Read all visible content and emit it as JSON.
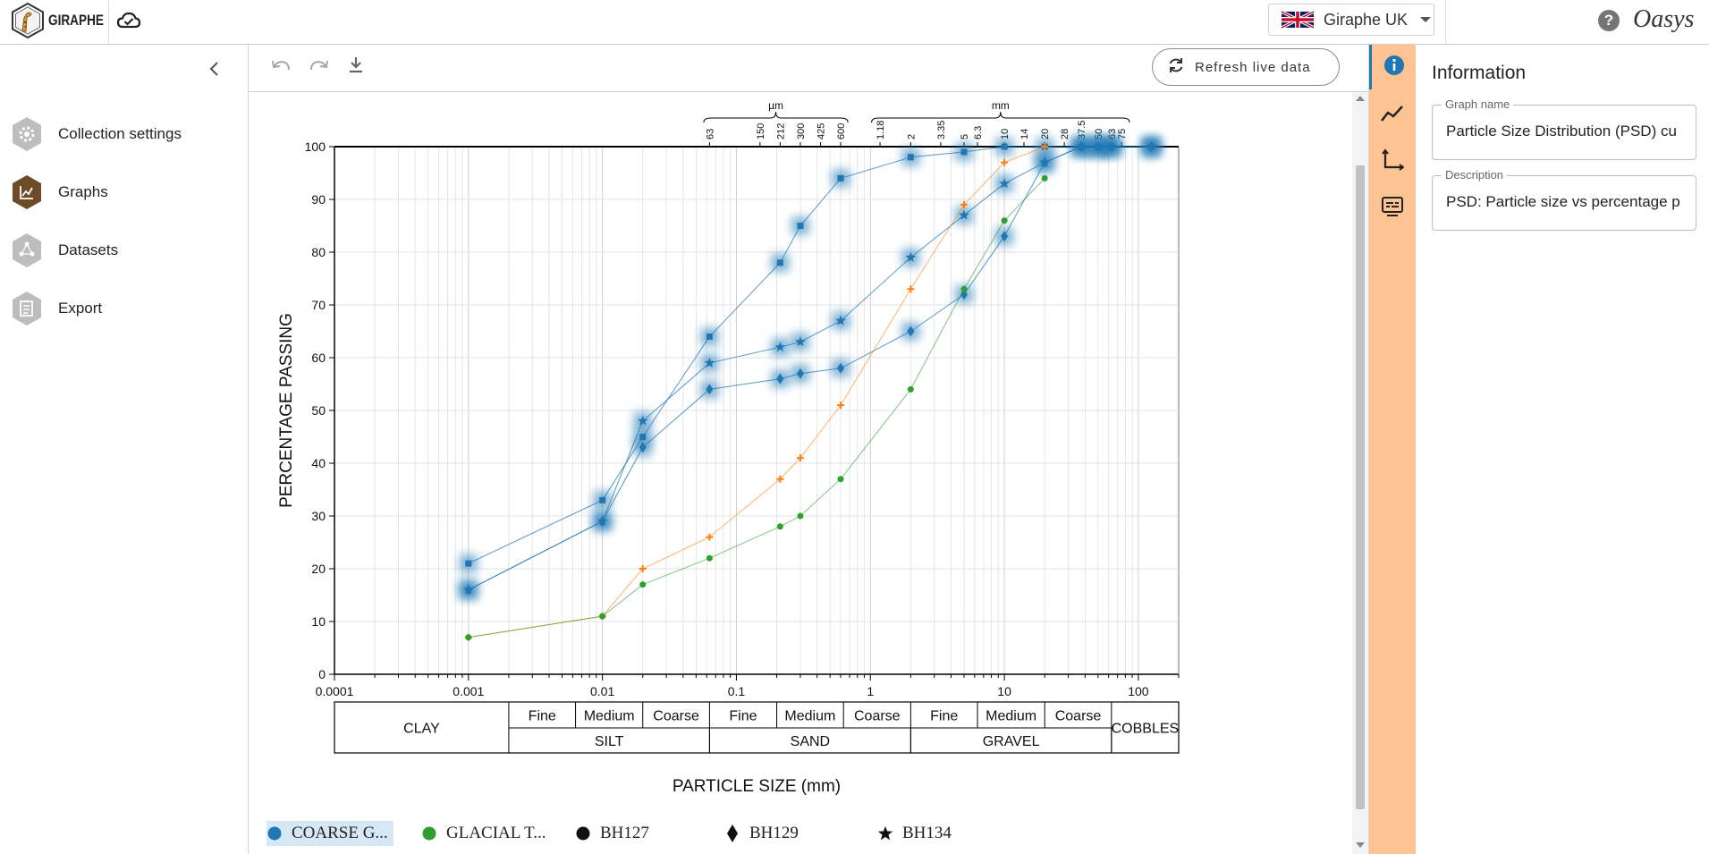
{
  "header": {
    "app_name": "GIRAPHE",
    "region_label": "Giraphe UK",
    "brand": "Oasys",
    "help_glyph": "?"
  },
  "sidebar": {
    "items": [
      {
        "label": "Collection settings",
        "icon": "gear-icon",
        "color": "#b9b9b9"
      },
      {
        "label": "Graphs",
        "icon": "graph-icon",
        "color": "#6d4a28"
      },
      {
        "label": "Datasets",
        "icon": "dataset-icon",
        "color": "#b9b9b9"
      },
      {
        "label": "Export",
        "icon": "export-icon",
        "color": "#b9b9b9"
      }
    ]
  },
  "toolbar": {
    "refresh_label": "Refresh live data"
  },
  "info_panel": {
    "title": "Information",
    "graph_name_label": "Graph name",
    "graph_name_value": "Particle Size Distribution (PSD) cu",
    "description_label": "Description",
    "description_value": "PSD: Particle size vs percentage p"
  },
  "colors": {
    "accent": "#1f77b4",
    "rail": "#fdc393",
    "orange_series": "#ff7f0e",
    "green_series": "#2ca02c",
    "brand_brown": "#6d4a28"
  },
  "chart_data": {
    "type": "scatter",
    "x_scale": "log",
    "xlim": [
      0.0001,
      200
    ],
    "ylim": [
      0,
      100
    ],
    "xlabel": "PARTICLE SIZE (mm)",
    "ylabel": "PERCENTAGE PASSING",
    "x_ticks": [
      0.0001,
      0.001,
      0.01,
      0.1,
      1,
      10,
      100
    ],
    "x_tick_labels": [
      "0.0001",
      "0.001",
      "0.01",
      "0.1",
      "1",
      "10",
      "100"
    ],
    "y_ticks": [
      0,
      10,
      20,
      30,
      40,
      50,
      60,
      70,
      80,
      90,
      100
    ],
    "grid": true,
    "top_axis": {
      "um_label": "µm",
      "mm_label": "mm",
      "um_ticks": [
        {
          "v": 0.063,
          "t": "63"
        },
        {
          "v": 0.15,
          "t": "150"
        },
        {
          "v": 0.212,
          "t": "212"
        },
        {
          "v": 0.3,
          "t": "300"
        },
        {
          "v": 0.425,
          "t": "425"
        },
        {
          "v": 0.6,
          "t": "600"
        }
      ],
      "mm_ticks": [
        {
          "v": 1.18,
          "t": "1.18"
        },
        {
          "v": 2,
          "t": "2"
        },
        {
          "v": 3.35,
          "t": "3.35"
        },
        {
          "v": 5,
          "t": "5"
        },
        {
          "v": 6.3,
          "t": "6.3"
        },
        {
          "v": 10,
          "t": "10"
        },
        {
          "v": 14,
          "t": "14"
        },
        {
          "v": 20,
          "t": "20"
        },
        {
          "v": 28,
          "t": "28"
        },
        {
          "v": 37.5,
          "t": "37.5"
        },
        {
          "v": 50,
          "t": "50"
        },
        {
          "v": 63,
          "t": "63"
        },
        {
          "v": 75,
          "t": "75"
        }
      ]
    },
    "classification": {
      "top_row": [
        {
          "label": "CLAY",
          "from": 0.0001,
          "to": 0.002,
          "span": 2
        },
        {
          "label": "Fine",
          "from": 0.002,
          "to": 0.0063
        },
        {
          "label": "Medium",
          "from": 0.0063,
          "to": 0.02
        },
        {
          "label": "Coarse",
          "from": 0.02,
          "to": 0.063
        },
        {
          "label": "Fine",
          "from": 0.063,
          "to": 0.2
        },
        {
          "label": "Medium",
          "from": 0.2,
          "to": 0.63
        },
        {
          "label": "Coarse",
          "from": 0.63,
          "to": 2
        },
        {
          "label": "Fine",
          "from": 2,
          "to": 6.3
        },
        {
          "label": "Medium",
          "from": 6.3,
          "to": 20
        },
        {
          "label": "Coarse",
          "from": 20,
          "to": 63
        },
        {
          "label": "COBBLES",
          "from": 63,
          "to": 200,
          "span": 2
        }
      ],
      "bottom_row": [
        {
          "label": "SILT",
          "from": 0.002,
          "to": 0.063
        },
        {
          "label": "SAND",
          "from": 0.063,
          "to": 2
        },
        {
          "label": "GRAVEL",
          "from": 2,
          "to": 63
        }
      ]
    },
    "series": [
      {
        "marker": "square",
        "color": "#1f77b4",
        "highlight": true,
        "x": [
          0.001,
          0.01,
          0.02,
          0.063,
          0.212,
          0.3,
          0.6,
          2,
          5,
          10,
          20,
          37.5,
          50,
          63,
          125
        ],
        "y": [
          21,
          33,
          45,
          64,
          78,
          85,
          94,
          98,
          99,
          100,
          100,
          100,
          100,
          100,
          100
        ]
      },
      {
        "marker": "star",
        "color": "#1f77b4",
        "highlight": true,
        "x": [
          0.001,
          0.01,
          0.02,
          0.063,
          0.212,
          0.3,
          0.6,
          2,
          5,
          10,
          20,
          37.5,
          50,
          63,
          125
        ],
        "y": [
          16,
          29,
          48,
          59,
          62,
          63,
          67,
          79,
          87,
          93,
          97,
          100,
          100,
          100,
          100
        ]
      },
      {
        "marker": "diamond",
        "color": "#1f77b4",
        "highlight": true,
        "x": [
          0.001,
          0.01,
          0.02,
          0.063,
          0.212,
          0.3,
          0.6,
          2,
          5,
          10,
          20,
          37.5,
          50,
          63,
          125
        ],
        "y": [
          16,
          29,
          43,
          54,
          56,
          57,
          58,
          65,
          72,
          83,
          97,
          100,
          100,
          100,
          100
        ]
      },
      {
        "marker": "plus",
        "color": "#ff7f0e",
        "highlight": false,
        "x": [
          0.001,
          0.01,
          0.02,
          0.063,
          0.212,
          0.3,
          0.6,
          2,
          5,
          10,
          20
        ],
        "y": [
          7,
          11,
          20,
          26,
          37,
          41,
          51,
          73,
          89,
          97,
          100
        ]
      },
      {
        "marker": "circle",
        "color": "#2ca02c",
        "highlight": false,
        "x": [
          0.001,
          0.01,
          0.02,
          0.063,
          0.212,
          0.3,
          0.6,
          2,
          5,
          10,
          20
        ],
        "y": [
          7,
          11,
          17,
          22,
          28,
          30,
          37,
          54,
          73,
          86,
          94
        ]
      }
    ]
  },
  "legend": {
    "items": [
      {
        "label": "COARSE G...",
        "marker": "circle",
        "color": "#1f77b4",
        "selected": true
      },
      {
        "label": "GLACIAL T...",
        "marker": "circle",
        "color": "#2ca02c",
        "selected": false
      },
      {
        "label": "BH127",
        "marker": "circle",
        "color": "#111111",
        "selected": false
      },
      {
        "label": "BH129",
        "marker": "diamond",
        "color": "#111111",
        "selected": false
      },
      {
        "label": "BH134",
        "marker": "star",
        "color": "#111111",
        "selected": false
      }
    ]
  }
}
